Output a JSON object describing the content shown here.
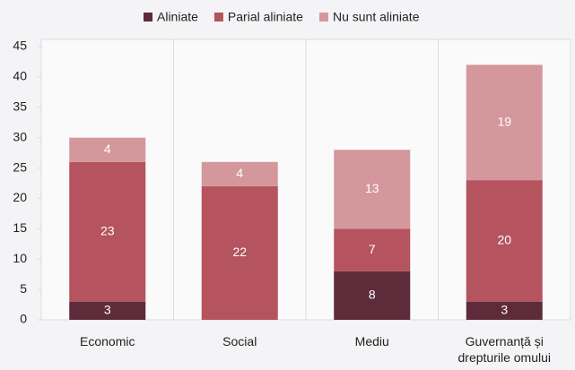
{
  "chart_data": {
    "type": "stacked_bar",
    "categories": [
      "Economic",
      "Social",
      "Mediu",
      "Guvernanță și drepturile omului"
    ],
    "series": [
      {
        "name": "Aliniate",
        "color": "#5e2b3b",
        "values": [
          3,
          0,
          8,
          3
        ]
      },
      {
        "name": "Parial aliniate",
        "color": "#b5535f",
        "values": [
          23,
          22,
          7,
          20
        ]
      },
      {
        "name": "Nu sunt aliniate",
        "color": "#d4979c",
        "values": [
          4,
          4,
          13,
          19
        ]
      }
    ],
    "ylim": [
      0,
      45
    ],
    "yticks": [
      0,
      5,
      10,
      15,
      20,
      25,
      30,
      35,
      40,
      45
    ],
    "legend": "top"
  }
}
